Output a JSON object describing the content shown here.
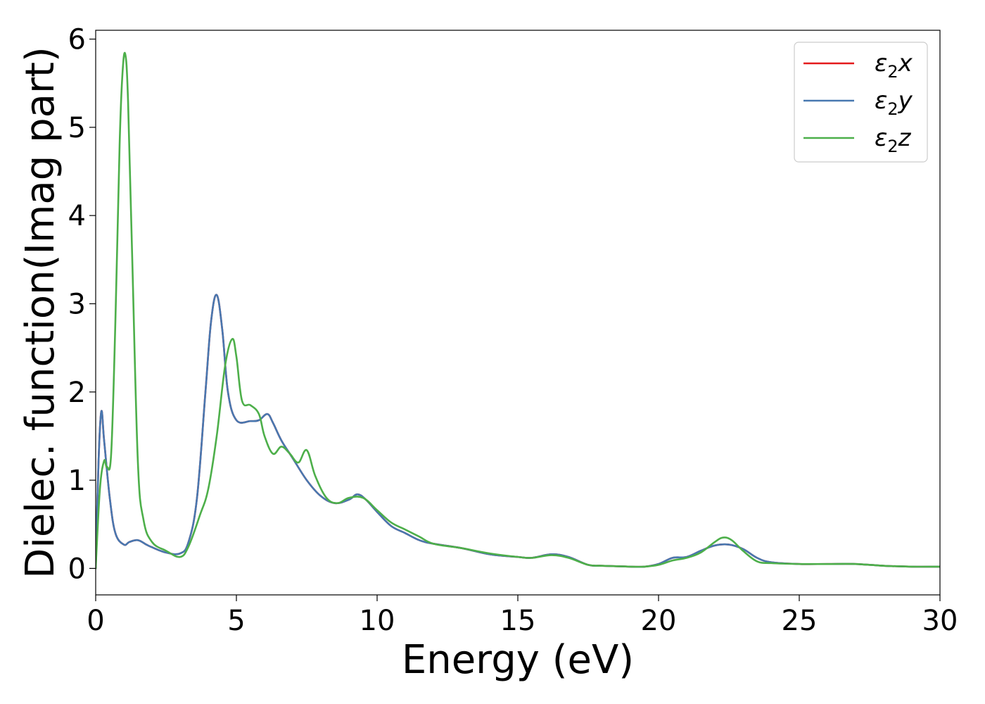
{
  "chart_data": {
    "type": "line",
    "xlabel": "Energy (eV)",
    "ylabel": "Dielec. function(Imag part)",
    "xlim": [
      0,
      30
    ],
    "ylim": [
      -0.3,
      6.1
    ],
    "xticks": [
      0,
      5,
      10,
      15,
      20,
      25,
      30
    ],
    "yticks": [
      0,
      1,
      2,
      3,
      4,
      5,
      6
    ],
    "grid": false,
    "legend_position": "top-right",
    "series": [
      {
        "name": "ε₂x",
        "name_parts": {
          "base": "ε",
          "sub": "2",
          "axis": "x"
        },
        "color": "#e41a1c",
        "x": [
          0,
          0.1,
          0.2,
          0.3,
          0.5,
          0.7,
          1.0,
          1.2,
          1.5,
          1.8,
          2.0,
          2.5,
          3.0,
          3.3,
          3.6,
          3.9,
          4.1,
          4.3,
          4.5,
          4.7,
          5.0,
          5.5,
          5.8,
          6.1,
          6.3,
          6.6,
          7.0,
          7.5,
          8.0,
          8.5,
          9.0,
          9.3,
          9.6,
          10.0,
          10.5,
          11.0,
          11.5,
          12.0,
          13.0,
          14.0,
          15.0,
          15.5,
          16.2,
          16.8,
          17.5,
          18.0,
          19.0,
          19.5,
          20.0,
          20.5,
          21.0,
          21.5,
          22.0,
          22.5,
          23.0,
          23.5,
          24.0,
          25.0,
          26.0,
          27.0,
          28.0,
          29.0,
          30.0
        ],
        "values": [
          0.0,
          1.2,
          1.78,
          1.45,
          0.8,
          0.4,
          0.27,
          0.3,
          0.32,
          0.27,
          0.24,
          0.18,
          0.17,
          0.3,
          0.8,
          2.0,
          2.8,
          3.1,
          2.7,
          2.0,
          1.68,
          1.67,
          1.68,
          1.75,
          1.65,
          1.45,
          1.25,
          1.0,
          0.82,
          0.74,
          0.78,
          0.84,
          0.78,
          0.64,
          0.48,
          0.4,
          0.32,
          0.28,
          0.23,
          0.16,
          0.13,
          0.12,
          0.16,
          0.13,
          0.04,
          0.03,
          0.02,
          0.02,
          0.05,
          0.12,
          0.13,
          0.2,
          0.26,
          0.27,
          0.22,
          0.12,
          0.07,
          0.05,
          0.05,
          0.05,
          0.03,
          0.02,
          0.02
        ]
      },
      {
        "name": "ε₂y",
        "name_parts": {
          "base": "ε",
          "sub": "2",
          "axis": "y"
        },
        "color": "#4878b0",
        "x": [
          0,
          0.1,
          0.2,
          0.3,
          0.5,
          0.7,
          1.0,
          1.2,
          1.5,
          1.8,
          2.0,
          2.5,
          3.0,
          3.3,
          3.6,
          3.9,
          4.1,
          4.3,
          4.5,
          4.7,
          5.0,
          5.5,
          5.8,
          6.1,
          6.3,
          6.6,
          7.0,
          7.5,
          8.0,
          8.5,
          9.0,
          9.3,
          9.6,
          10.0,
          10.5,
          11.0,
          11.5,
          12.0,
          13.0,
          14.0,
          15.0,
          15.5,
          16.2,
          16.8,
          17.5,
          18.0,
          19.0,
          19.5,
          20.0,
          20.5,
          21.0,
          21.5,
          22.0,
          22.5,
          23.0,
          23.5,
          24.0,
          25.0,
          26.0,
          27.0,
          28.0,
          29.0,
          30.0
        ],
        "values": [
          0.0,
          1.2,
          1.78,
          1.45,
          0.8,
          0.4,
          0.27,
          0.3,
          0.32,
          0.27,
          0.24,
          0.18,
          0.17,
          0.3,
          0.8,
          2.0,
          2.8,
          3.1,
          2.7,
          2.0,
          1.68,
          1.67,
          1.68,
          1.75,
          1.65,
          1.45,
          1.25,
          1.0,
          0.82,
          0.74,
          0.78,
          0.84,
          0.78,
          0.64,
          0.48,
          0.4,
          0.32,
          0.28,
          0.23,
          0.16,
          0.13,
          0.12,
          0.16,
          0.13,
          0.04,
          0.03,
          0.02,
          0.02,
          0.05,
          0.12,
          0.13,
          0.2,
          0.26,
          0.27,
          0.22,
          0.12,
          0.07,
          0.05,
          0.05,
          0.05,
          0.03,
          0.02,
          0.02
        ]
      },
      {
        "name": "ε₂z",
        "name_parts": {
          "base": "ε",
          "sub": "2",
          "axis": "z"
        },
        "color": "#4daf4a",
        "x": [
          0,
          0.15,
          0.3,
          0.4,
          0.55,
          0.7,
          0.85,
          0.95,
          1.05,
          1.15,
          1.3,
          1.5,
          1.7,
          2.0,
          2.5,
          3.0,
          3.3,
          3.7,
          4.0,
          4.3,
          4.6,
          4.85,
          5.0,
          5.2,
          5.5,
          5.8,
          6.0,
          6.3,
          6.6,
          6.9,
          7.2,
          7.5,
          7.8,
          8.2,
          8.6,
          9.0,
          9.5,
          10.0,
          10.5,
          11.0,
          11.5,
          12.0,
          13.0,
          14.0,
          15.0,
          15.5,
          16.2,
          16.8,
          17.5,
          18.0,
          19.0,
          19.5,
          20.0,
          20.5,
          21.0,
          21.5,
          22.0,
          22.3,
          22.6,
          23.0,
          23.5,
          24.0,
          25.0,
          26.0,
          27.0,
          28.0,
          29.0,
          30.0
        ],
        "values": [
          0.0,
          0.9,
          1.22,
          1.15,
          1.3,
          2.8,
          4.8,
          5.6,
          5.83,
          5.3,
          3.5,
          1.2,
          0.55,
          0.3,
          0.2,
          0.13,
          0.25,
          0.6,
          0.9,
          1.5,
          2.3,
          2.6,
          2.4,
          1.9,
          1.85,
          1.75,
          1.5,
          1.3,
          1.38,
          1.3,
          1.2,
          1.34,
          1.05,
          0.8,
          0.74,
          0.8,
          0.8,
          0.66,
          0.52,
          0.44,
          0.36,
          0.28,
          0.23,
          0.17,
          0.13,
          0.12,
          0.15,
          0.12,
          0.04,
          0.03,
          0.02,
          0.02,
          0.04,
          0.09,
          0.12,
          0.18,
          0.3,
          0.35,
          0.32,
          0.2,
          0.08,
          0.06,
          0.05,
          0.05,
          0.05,
          0.03,
          0.02,
          0.02
        ]
      }
    ]
  }
}
